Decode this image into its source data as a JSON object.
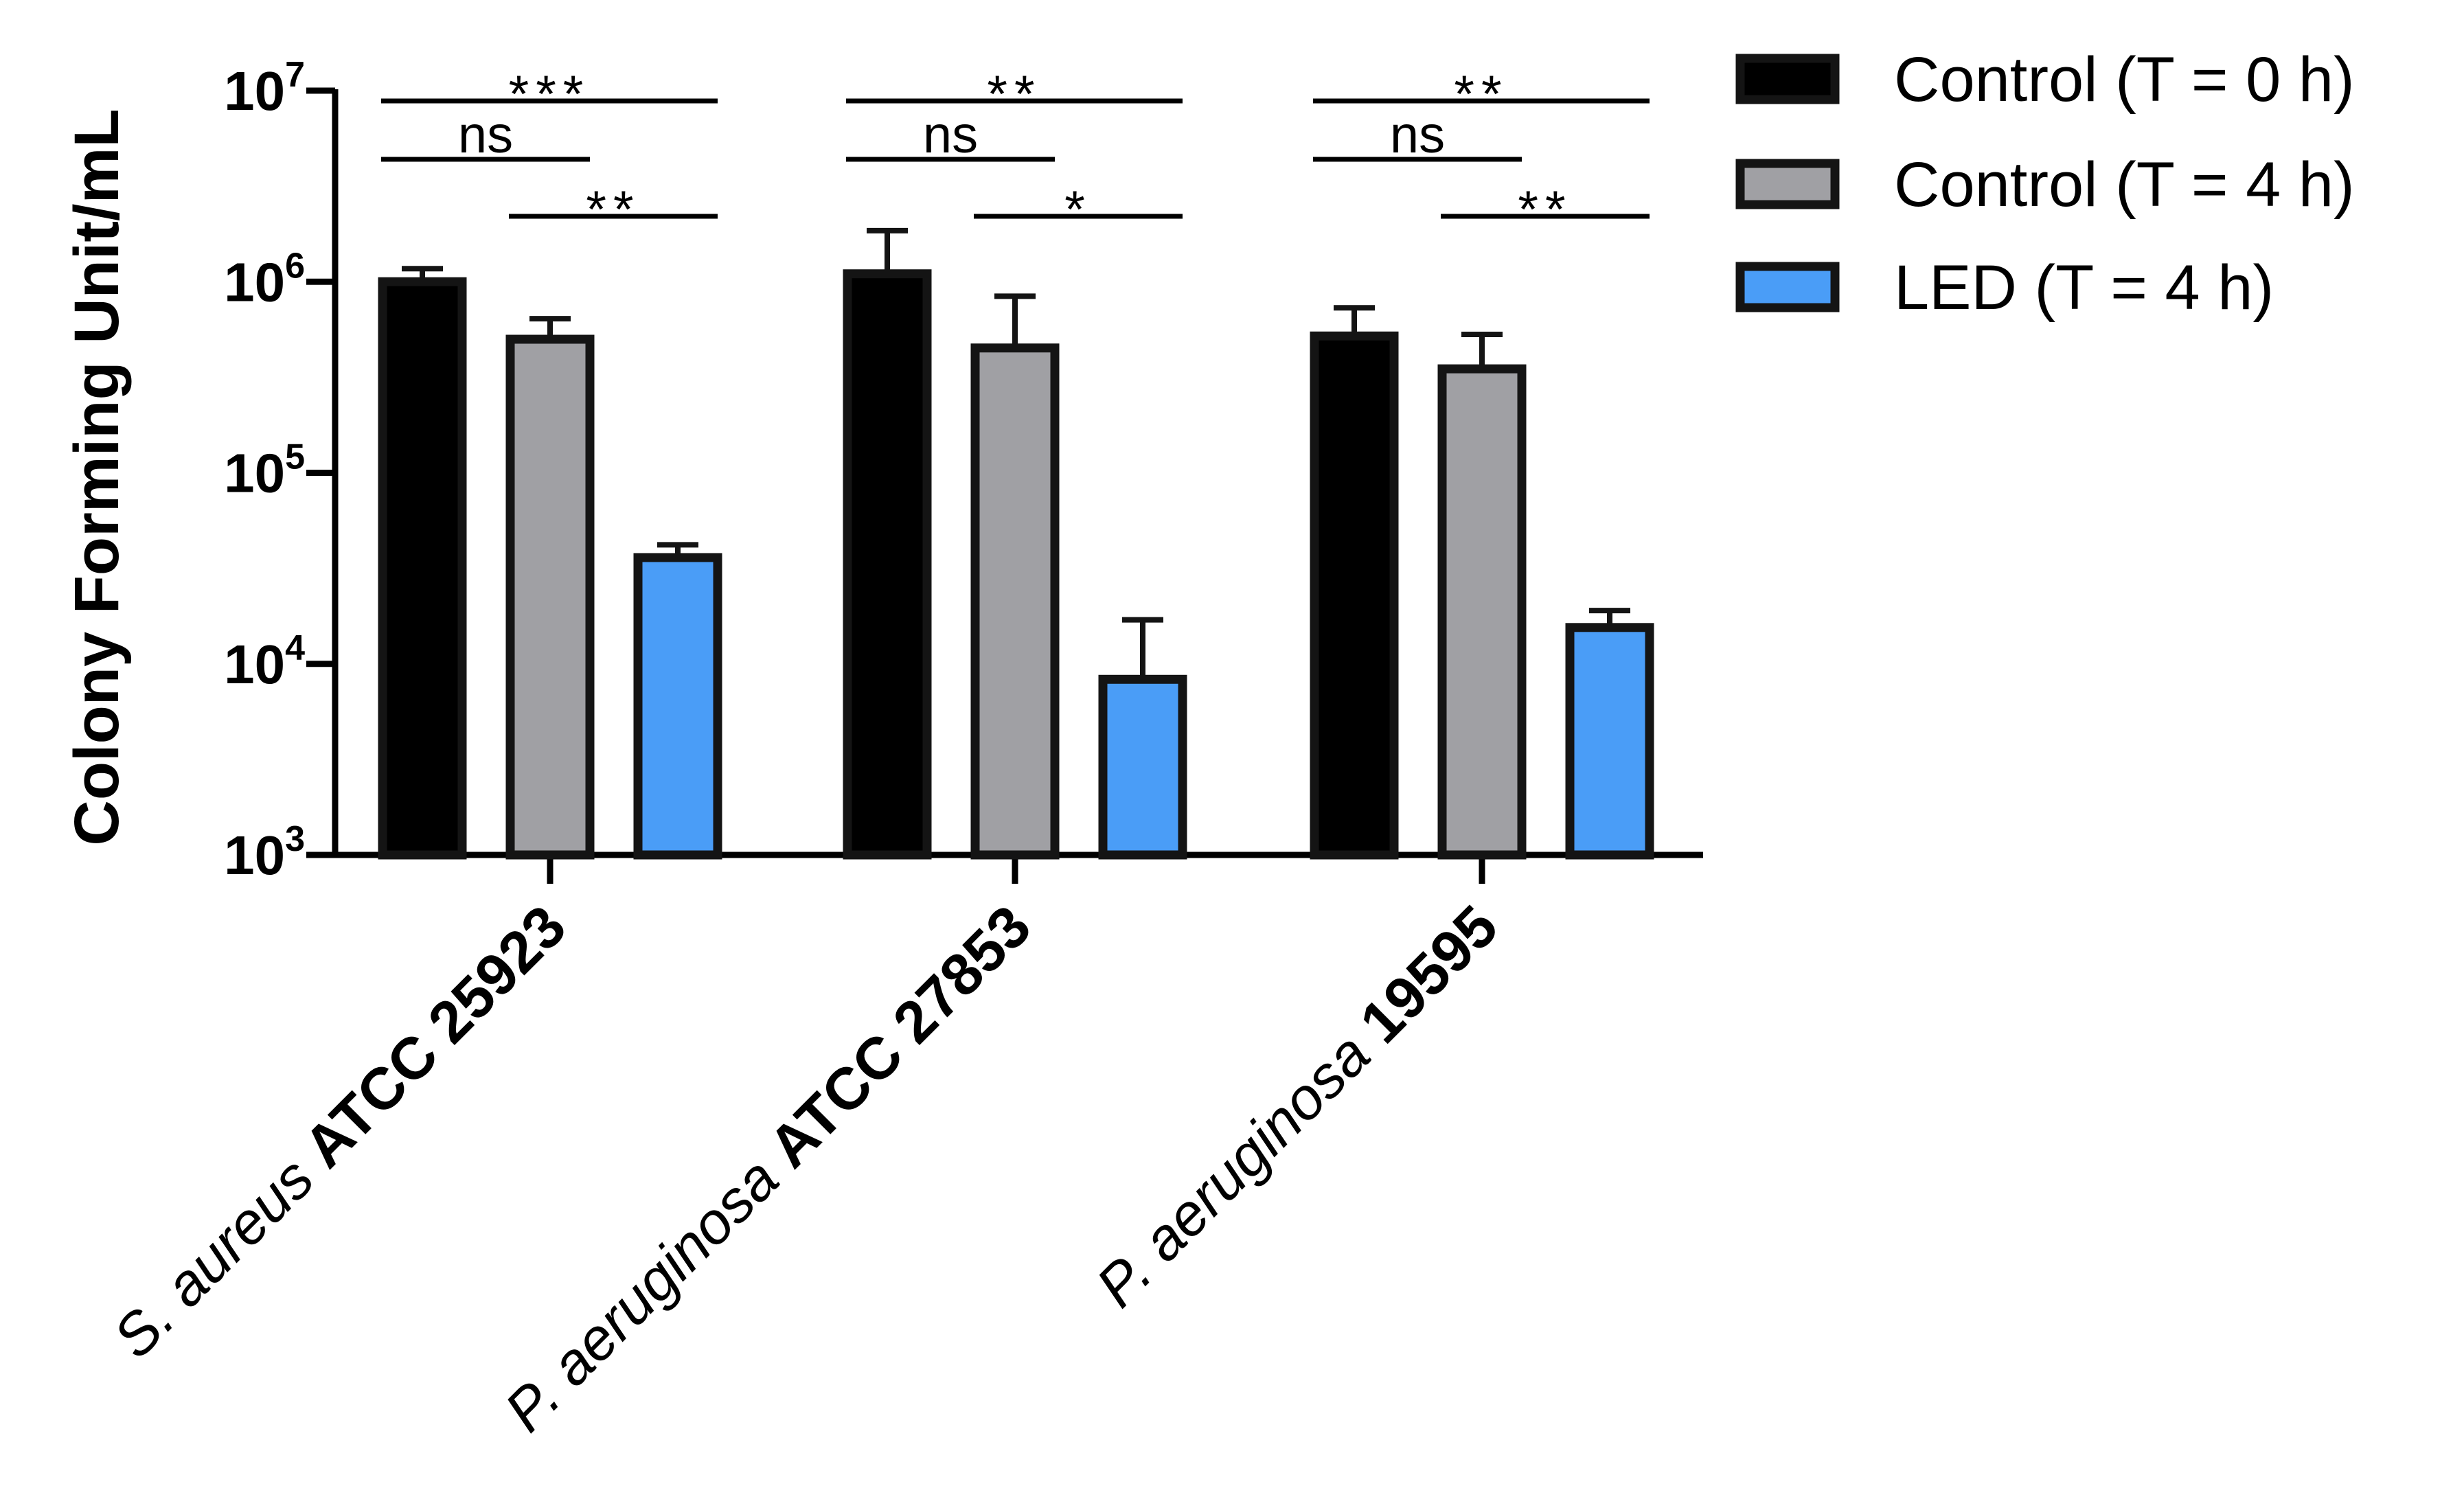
{
  "chart_data": {
    "type": "bar",
    "scale": "log",
    "ylabel": "Colony Forming Unit/mL",
    "ylim": [
      1000,
      10000000
    ],
    "yticks": [
      {
        "base": "10",
        "exp": "3",
        "value": 1000
      },
      {
        "base": "10",
        "exp": "4",
        "value": 10000
      },
      {
        "base": "10",
        "exp": "5",
        "value": 100000
      },
      {
        "base": "10",
        "exp": "6",
        "value": 1000000
      },
      {
        "base": "10",
        "exp": "7",
        "value": 10000000
      }
    ],
    "categories": [
      {
        "italic": "S. aureus",
        "bold": "ATCC 25923"
      },
      {
        "italic": "P. aeruginosa",
        "bold": "ATCC 27853"
      },
      {
        "italic": "P. aeruginosa",
        "bold": "19595"
      }
    ],
    "series": [
      {
        "name": "Control (T = 0 h)",
        "color": "#000000",
        "values": [
          1000000,
          1100000,
          520000
        ],
        "errors": [
          1170000,
          1850000,
          730000
        ]
      },
      {
        "name": "Control (T = 4 h)",
        "color": "#a0a0a4",
        "values": [
          500000,
          450000,
          350000
        ],
        "errors": [
          640000,
          840000,
          530000
        ]
      },
      {
        "name": "LED (T = 4 h)",
        "color": "#4a9df7",
        "values": [
          36000,
          8300,
          15500
        ],
        "errors": [
          42000,
          17000,
          19000
        ]
      }
    ],
    "significance": [
      [
        {
          "from": 0,
          "to": 2,
          "label": "***",
          "level": 0
        },
        {
          "from": 0,
          "to": 1,
          "label": "ns",
          "level": 1
        },
        {
          "from": 1,
          "to": 2,
          "label": "**",
          "level": 2
        }
      ],
      [
        {
          "from": 0,
          "to": 2,
          "label": "**",
          "level": 0
        },
        {
          "from": 0,
          "to": 1,
          "label": "ns",
          "level": 1
        },
        {
          "from": 1,
          "to": 2,
          "label": "*",
          "level": 2
        }
      ],
      [
        {
          "from": 0,
          "to": 2,
          "label": "**",
          "level": 0
        },
        {
          "from": 0,
          "to": 1,
          "label": "ns",
          "level": 1
        },
        {
          "from": 1,
          "to": 2,
          "label": "**",
          "level": 2
        }
      ]
    ],
    "legend_position": "top-right"
  }
}
